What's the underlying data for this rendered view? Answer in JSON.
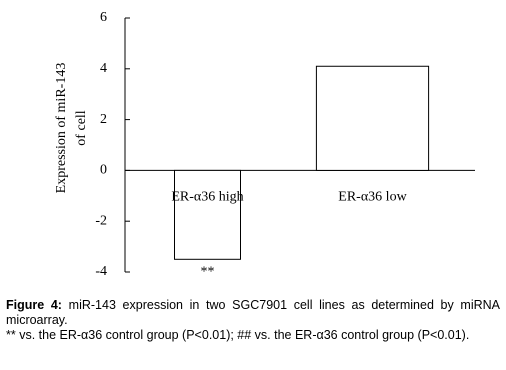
{
  "chart_data": {
    "type": "bar",
    "y_label": [
      "Expression of miR-143",
      "of cell"
    ],
    "categories": [
      "ER-α36 high",
      "ER-α36 low"
    ],
    "values": [
      -3.5,
      4.1
    ],
    "color": "#ffffff",
    "annotations": [
      "**",
      null
    ],
    "ylim": [
      -4,
      6
    ],
    "yticks": [
      -4,
      -2,
      0,
      2,
      4,
      6
    ],
    "grid": false
  },
  "caption": {
    "label": "Figure 4:",
    "text": "miR-143 expression in two SGC7901 cell lines as determined by miRNA microarray.",
    "note": "** vs. the ER-α36 control group (P<0.01); ## vs. the ER-α36 control group (P<0.01)."
  }
}
